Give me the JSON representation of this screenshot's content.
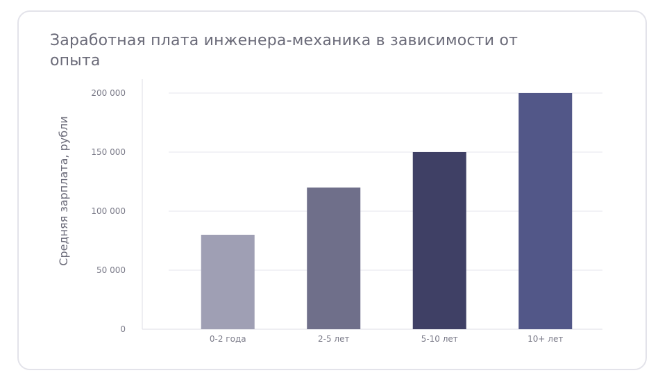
{
  "chart_data": {
    "type": "bar",
    "title": "Заработная плата инженера-механика в зависимости от опыта",
    "xlabel": "",
    "ylabel": "Средняя зарплата, рубли",
    "categories": [
      "0-2 года",
      "2-5 лет",
      "5-10 лет",
      "10+ лет"
    ],
    "values": [
      80000,
      120000,
      150000,
      200000
    ],
    "colors": [
      "#9f9fb4",
      "#6f6f8a",
      "#3f4065",
      "#525788"
    ],
    "ylim": [
      0,
      200000
    ],
    "yticks": [
      0,
      50000,
      100000,
      150000,
      200000
    ],
    "ytick_labels": [
      "0",
      "50 000",
      "100 000",
      "150 000",
      "200 000"
    ],
    "grid": true,
    "gridline_color": "#e6e6ee",
    "axis_color": "#dcdce4"
  }
}
